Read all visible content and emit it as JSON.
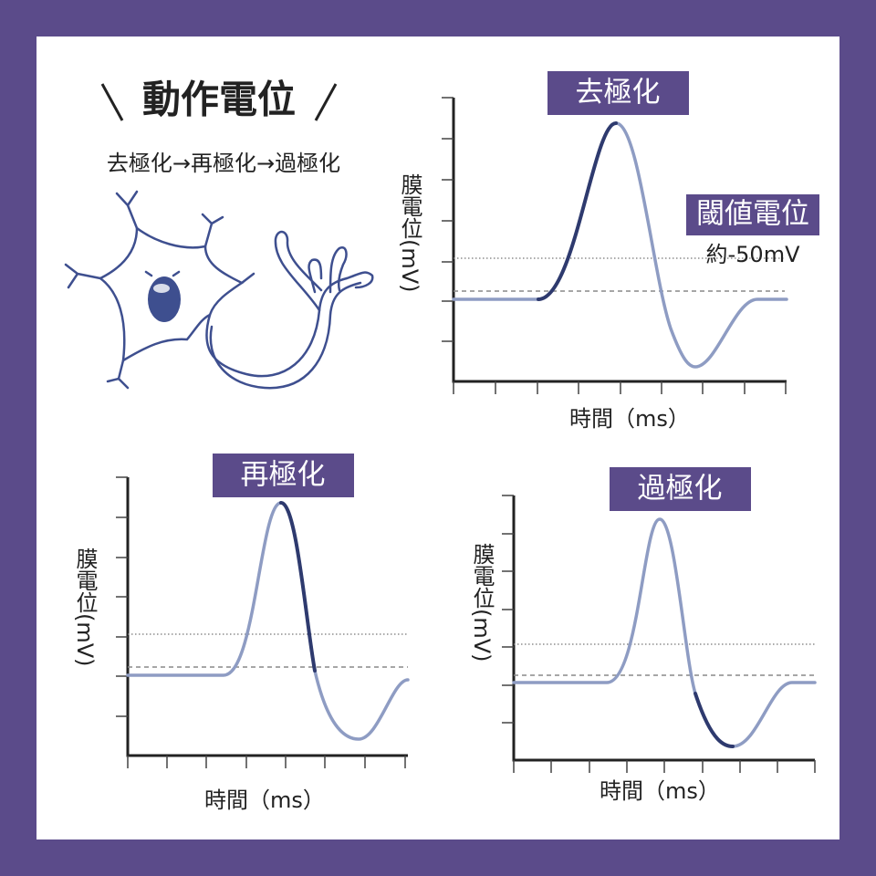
{
  "header": {
    "title": "動作電位",
    "subtitle": "去極化→再極化→過極化"
  },
  "panels": [
    {
      "label": "去極化",
      "y_label": "膜電位(mV)",
      "x_label": "時間（ms）"
    },
    {
      "label": "再極化",
      "y_label": "膜電位(mV)",
      "x_label": "時間（ms）"
    },
    {
      "label": "過極化",
      "y_label": "膜電位(mV)",
      "x_label": "時間（ms）"
    }
  ],
  "threshold": {
    "label": "閾値電位",
    "value": "約-50mV"
  }
}
